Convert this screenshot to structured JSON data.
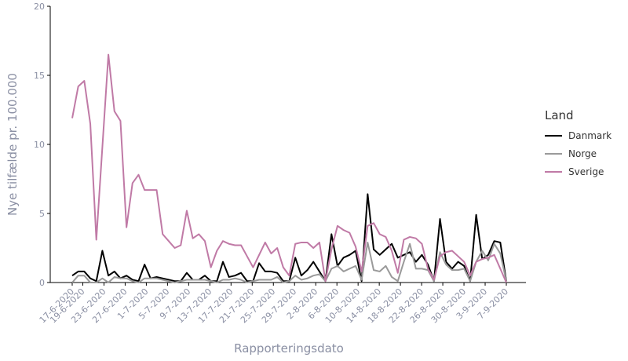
{
  "chart_data": {
    "type": "line",
    "xlabel": "Rapporteringsdato",
    "ylabel": "Nye tilfælde pr. 100.000",
    "ylim": [
      0,
      20
    ],
    "yticks": [
      0,
      5,
      10,
      15,
      20
    ],
    "x_start": "2020-06-17",
    "x_end": "2020-09-07",
    "xticks": [
      "17-6-2020",
      "19-6-2020",
      "23-6-2020",
      "27-6-2020",
      "1-7-2020",
      "5-7-2020",
      "9-7-2020",
      "13-7-2020",
      "17-7-2020",
      "21-7-2020",
      "25-7-2020",
      "29-7-2020",
      "2-8-2020",
      "6-8-2020",
      "10-8-2020",
      "14-8-2020",
      "18-8-2020",
      "22-8-2020",
      "26-8-2020",
      "30-8-2020",
      "3-9-2020",
      "7-9-2020"
    ],
    "legend": {
      "title": "Land",
      "position": "right"
    },
    "grid": false,
    "series": [
      {
        "name": "Danmark",
        "color": "#000000",
        "values": [
          0.5,
          0.8,
          0.8,
          0.3,
          0.1,
          2.3,
          0.5,
          0.8,
          0.3,
          0.5,
          0.2,
          0.1,
          1.3,
          0.3,
          0.4,
          0.3,
          0.2,
          0.1,
          0.1,
          0.7,
          0.2,
          0.2,
          0.5,
          0.1,
          0.1,
          1.5,
          0.4,
          0.5,
          0.7,
          0.1,
          0.1,
          1.4,
          0.8,
          0.8,
          0.7,
          0.1,
          0.1,
          1.8,
          0.5,
          0.9,
          1.5,
          0.8,
          0.1,
          3.5,
          1.2,
          1.8,
          2.0,
          2.3,
          0.1,
          6.4,
          2.4,
          2.0,
          2.4,
          2.8,
          1.8,
          2.0,
          2.2,
          1.5,
          2.0,
          1.3,
          0.1,
          4.6,
          1.5,
          1.0,
          1.5,
          1.2,
          0.1,
          4.9,
          1.7,
          2.0,
          3.0,
          2.9,
          0.1
        ]
      },
      {
        "name": "Norge",
        "color": "#9a9a9a",
        "values": [
          0.0,
          0.5,
          0.5,
          0.0,
          0.0,
          0.3,
          0.0,
          0.4,
          0.3,
          0.3,
          0.1,
          0.0,
          0.3,
          0.3,
          0.3,
          0.2,
          0.1,
          0.0,
          0.1,
          0.2,
          0.2,
          0.2,
          0.2,
          0.1,
          0.0,
          0.2,
          0.2,
          0.3,
          0.2,
          0.0,
          0.1,
          0.2,
          0.2,
          0.2,
          0.4,
          0.0,
          0.1,
          0.5,
          0.2,
          0.3,
          0.5,
          0.6,
          0.1,
          1.0,
          1.2,
          0.8,
          1.0,
          1.2,
          0.2,
          2.9,
          0.9,
          0.8,
          1.2,
          0.4,
          0.1,
          1.5,
          2.8,
          1.0,
          1.0,
          0.9,
          0.1,
          2.2,
          1.3,
          0.9,
          0.9,
          1.0,
          0.1,
          1.5,
          2.3,
          1.6,
          2.8,
          2.1,
          0.1
        ]
      },
      {
        "name": "Sverige",
        "color": "#c07aa6",
        "values": [
          11.9,
          14.2,
          14.6,
          11.5,
          3.1,
          9.8,
          16.5,
          12.4,
          11.7,
          4.0,
          7.2,
          7.8,
          6.7,
          6.7,
          6.7,
          3.5,
          3.0,
          2.5,
          2.7,
          5.2,
          3.2,
          3.5,
          3.0,
          1.1,
          2.3,
          3.0,
          2.8,
          2.7,
          2.7,
          1.9,
          1.1,
          2.0,
          2.9,
          2.1,
          2.5,
          1.1,
          0.5,
          2.8,
          2.9,
          2.9,
          2.5,
          2.9,
          0.1,
          2.4,
          4.1,
          3.8,
          3.6,
          2.6,
          0.8,
          4.1,
          4.3,
          3.5,
          3.3,
          2.3,
          0.7,
          3.1,
          3.3,
          3.2,
          2.8,
          1.0,
          0.2,
          1.9,
          2.2,
          2.3,
          1.9,
          1.5,
          0.5,
          1.5,
          1.7,
          1.8,
          2.0,
          1.0,
          0.0
        ]
      }
    ]
  }
}
